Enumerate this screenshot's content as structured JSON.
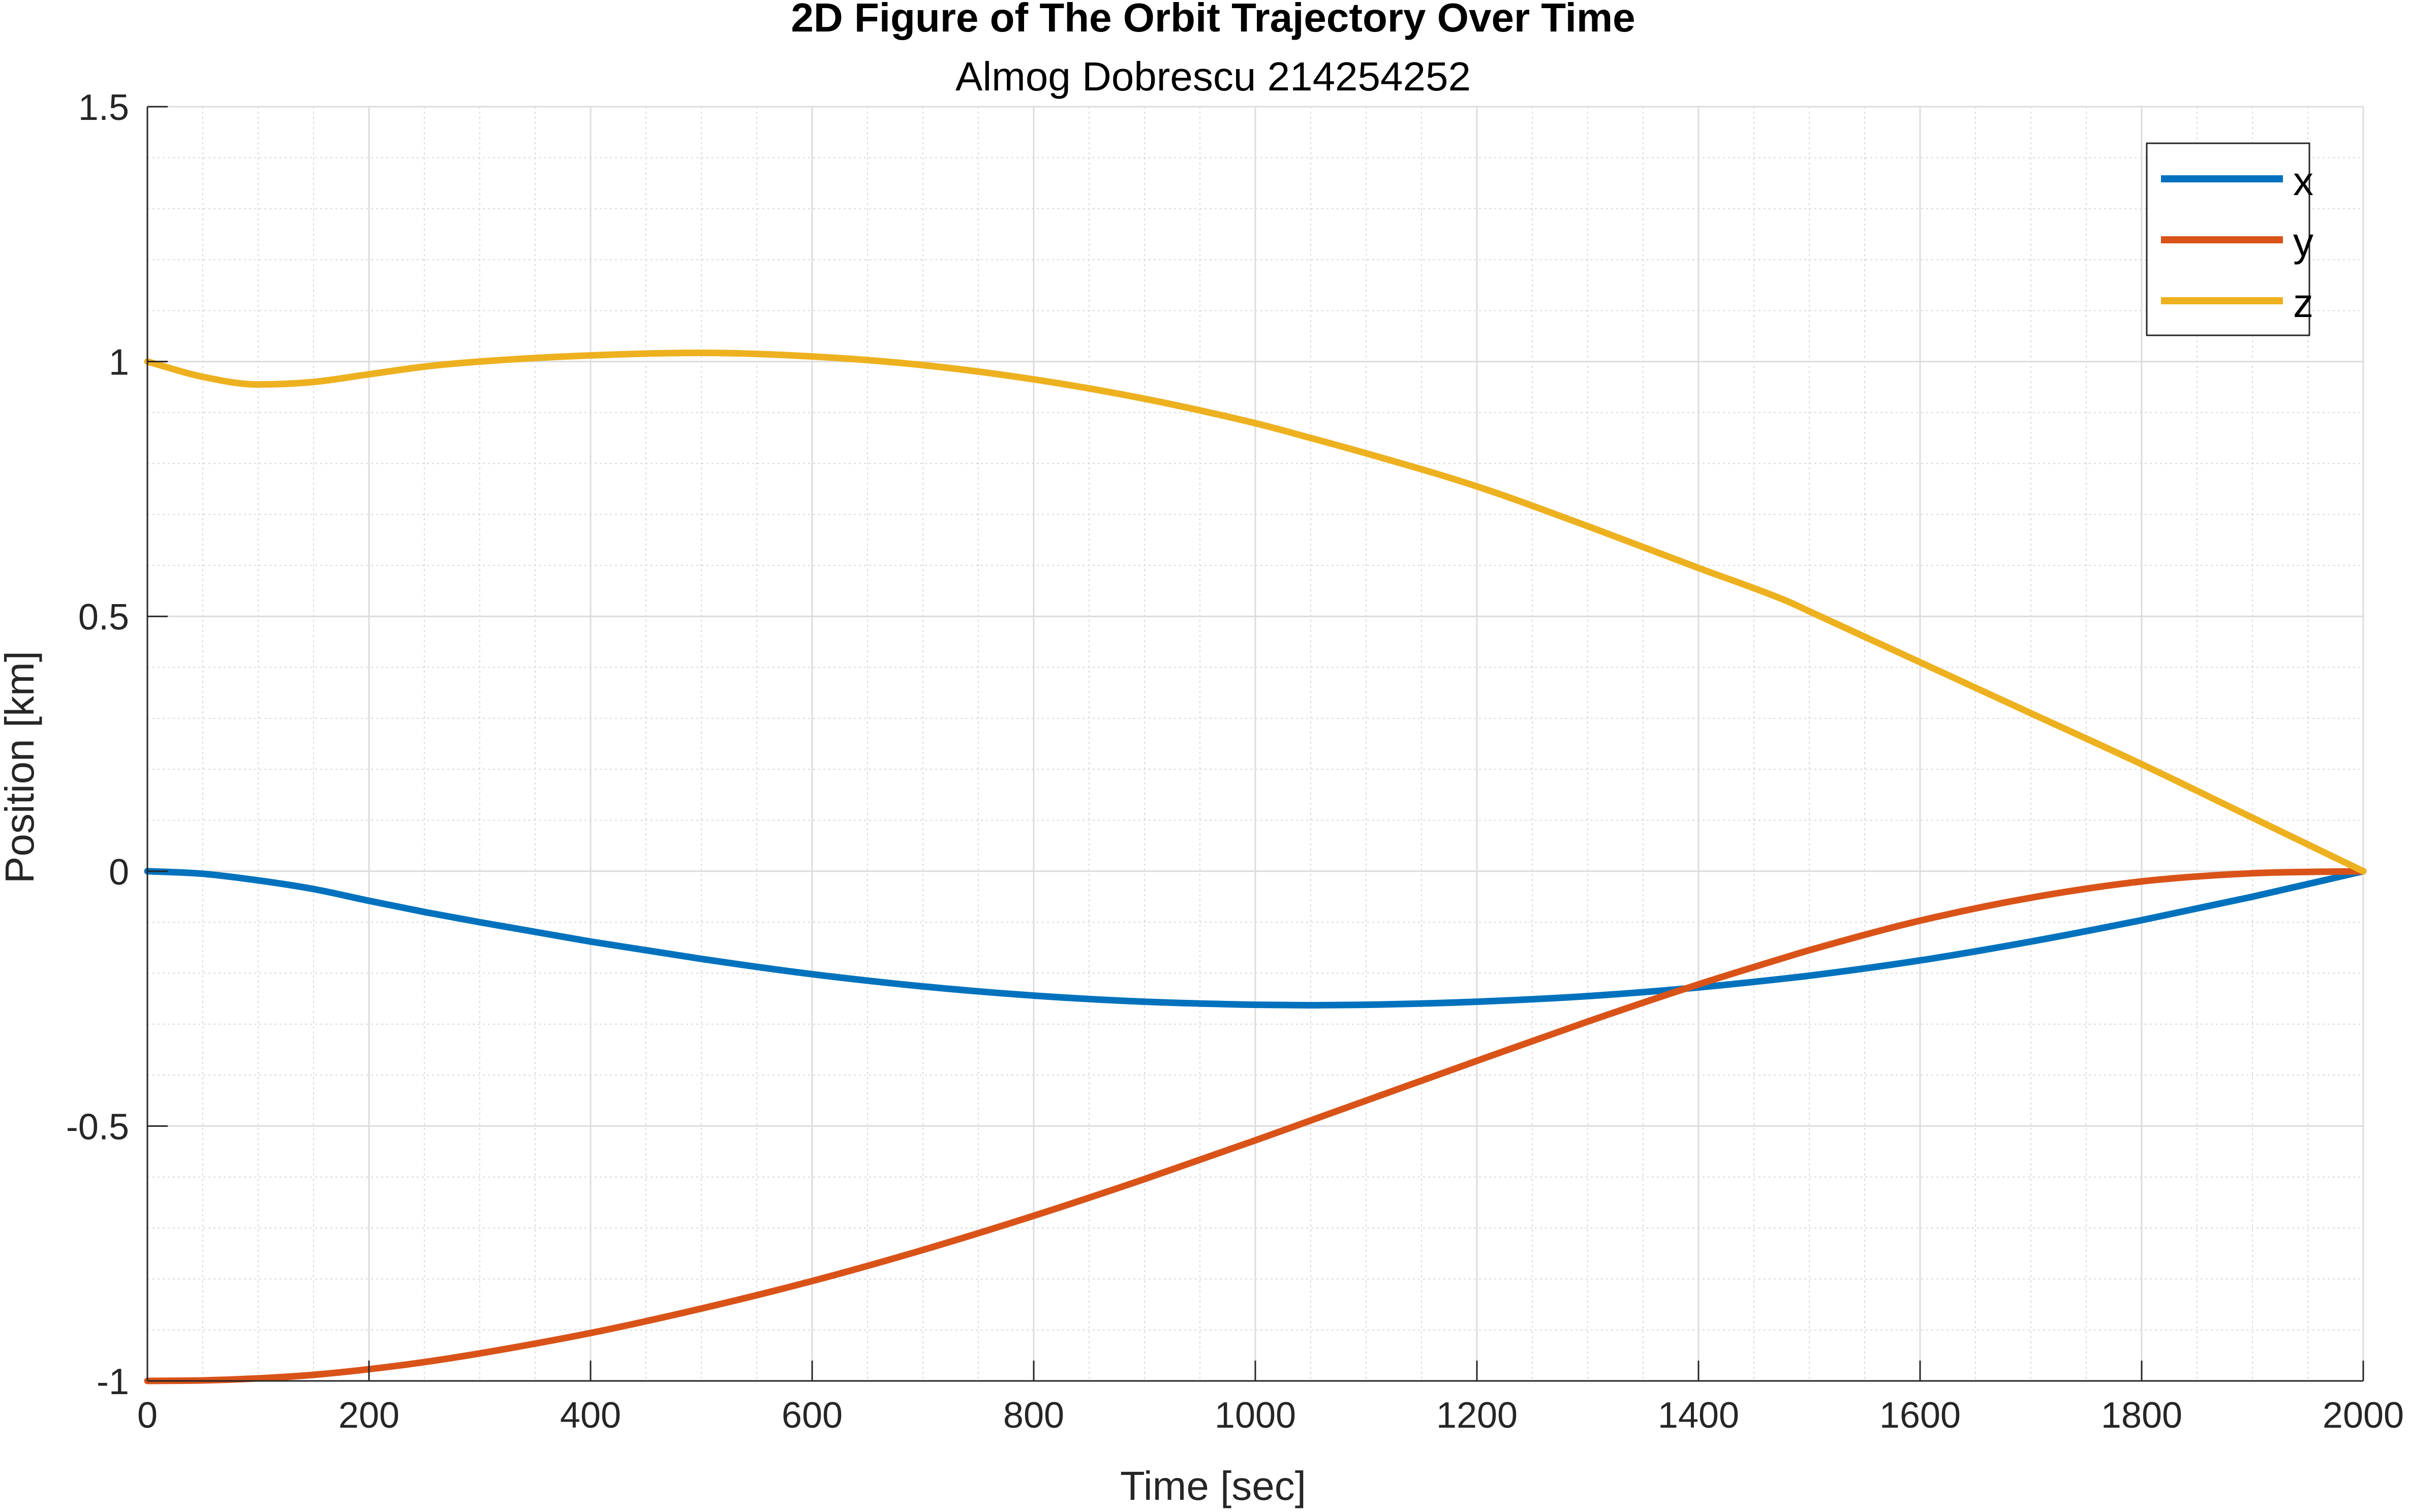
{
  "chart_data": {
    "type": "line",
    "title": "2D Figure of The Orbit Trajectory Over Time",
    "subtitle": "Almog Dobrescu 214254252",
    "xlabel": "Time [sec]",
    "ylabel": "Position [km]",
    "xlim": [
      0,
      2000
    ],
    "ylim": [
      -1,
      1.5
    ],
    "xticks": [
      0,
      200,
      400,
      600,
      800,
      1000,
      1200,
      1400,
      1600,
      1800,
      2000
    ],
    "xtick_labels": [
      "0",
      "200",
      "400",
      "600",
      "800",
      "1000",
      "1200",
      "1400",
      "1600",
      "1800",
      "2000"
    ],
    "yticks": [
      -1,
      -0.5,
      0,
      0.5,
      1,
      1.5
    ],
    "ytick_labels": [
      "-1",
      "-0.5",
      "0",
      "0.5",
      "1",
      "1.5"
    ],
    "grid": true,
    "minor_grid": true,
    "legend_position": "top-right",
    "x": [
      0,
      50,
      100,
      150,
      200,
      250,
      300,
      400,
      500,
      600,
      700,
      800,
      900,
      1000,
      1050,
      1100,
      1200,
      1300,
      1400,
      1480,
      1500,
      1600,
      1700,
      1800,
      1900,
      2000
    ],
    "series": [
      {
        "name": "x",
        "color": "#0072BD",
        "values": [
          0,
          -0.005,
          -0.018,
          -0.035,
          -0.058,
          -0.08,
          -0.1,
          -0.138,
          -0.172,
          -0.202,
          -0.226,
          -0.244,
          -0.256,
          -0.262,
          -0.263,
          -0.262,
          -0.256,
          -0.245,
          -0.228,
          -0.21,
          -0.205,
          -0.175,
          -0.138,
          -0.096,
          -0.05,
          0
        ]
      },
      {
        "name": "y",
        "color": "#D95319",
        "values": [
          -1,
          -0.999,
          -0.995,
          -0.988,
          -0.977,
          -0.963,
          -0.946,
          -0.906,
          -0.858,
          -0.804,
          -0.743,
          -0.676,
          -0.604,
          -0.528,
          -0.489,
          -0.45,
          -0.372,
          -0.295,
          -0.222,
          -0.168,
          -0.155,
          -0.097,
          -0.052,
          -0.02,
          -0.004,
          0
        ]
      },
      {
        "name": "z",
        "color": "#EDB120",
        "values": [
          1,
          0.97,
          0.955,
          0.96,
          0.975,
          0.99,
          1.0,
          1.012,
          1.017,
          1.01,
          0.993,
          0.965,
          0.927,
          0.879,
          0.85,
          0.82,
          0.755,
          0.677,
          0.595,
          0.53,
          0.51,
          0.41,
          0.31,
          0.21,
          0.105,
          0
        ]
      }
    ]
  }
}
